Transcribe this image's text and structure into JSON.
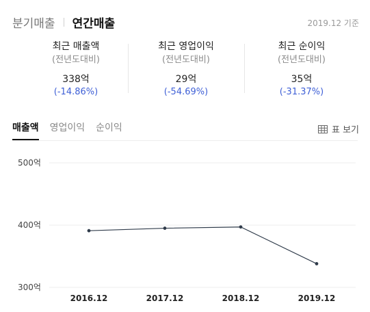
{
  "tabs": {
    "quarterly": "분기매출",
    "annual": "연간매출"
  },
  "as_of": "2019.12 기준",
  "summary": [
    {
      "title": "최근 매출액",
      "subtitle": "(전년도대비)",
      "value": "338억",
      "change": "(-14.86%)"
    },
    {
      "title": "최근 영업이익",
      "subtitle": "(전년도대비)",
      "value": "29억",
      "change": "(-54.69%)"
    },
    {
      "title": "최근 순이익",
      "subtitle": "(전년도대비)",
      "value": "35억",
      "change": "(-31.37%)"
    }
  ],
  "chart_tabs": [
    "매출액",
    "영업이익",
    "순이익"
  ],
  "table_view_label": "표 보기",
  "chart_data": {
    "type": "line",
    "categories": [
      "2016.12",
      "2017.12",
      "2018.12",
      "2019.12"
    ],
    "values": [
      391,
      395,
      397,
      338
    ],
    "y_ticks": [
      "500억",
      "400억",
      "300억"
    ],
    "ylim": [
      300,
      500
    ],
    "grid": true,
    "line_color": "#2f3b4a"
  }
}
